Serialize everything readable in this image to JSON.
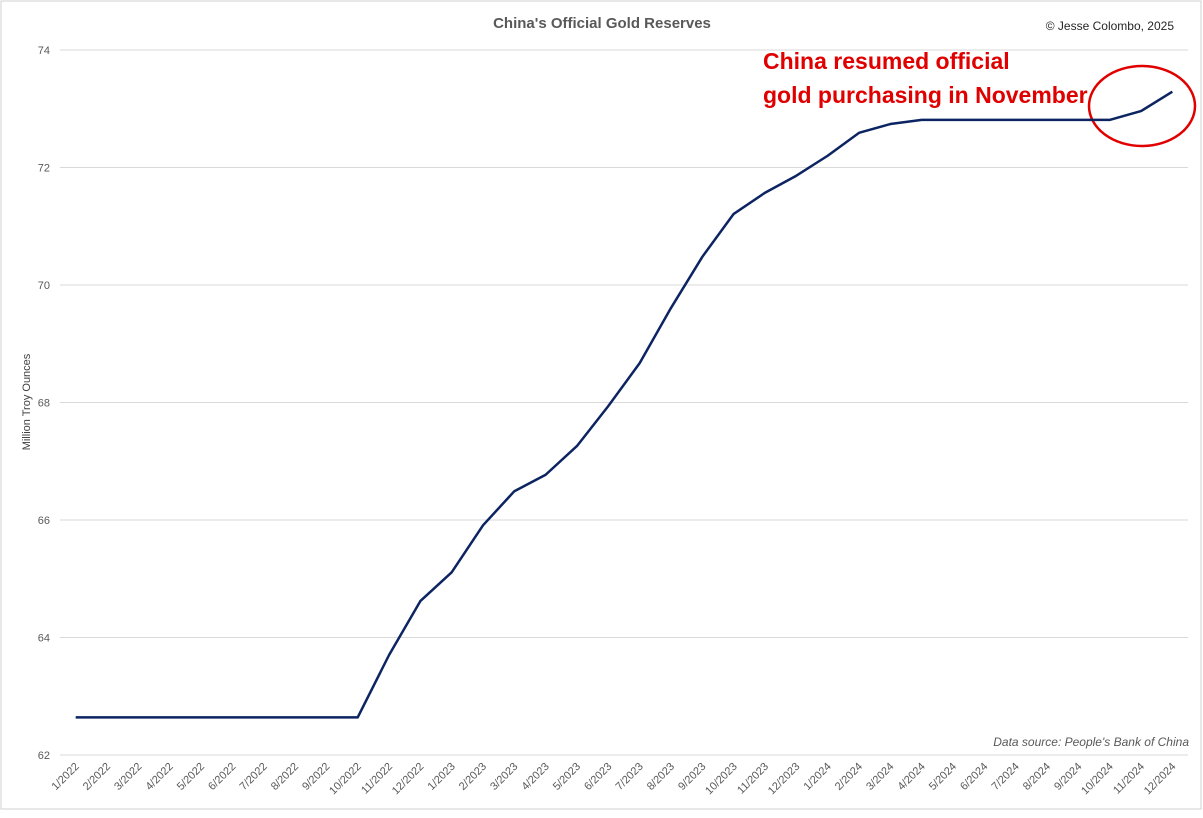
{
  "chart_data": {
    "type": "line",
    "title": "China's Official Gold Reserves",
    "credit": "© Jesse Colombo, 2025",
    "source": "Data source: People's Bank of China",
    "y_label": "Million Troy Ounces",
    "annotation": [
      "China resumed official",
      "gold purchasing in November"
    ],
    "categories": [
      "1/2022",
      "2/2022",
      "3/2022",
      "4/2022",
      "5/2022",
      "6/2022",
      "7/2022",
      "8/2022",
      "9/2022",
      "10/2022",
      "11/2022",
      "12/2022",
      "1/2023",
      "2/2023",
      "3/2023",
      "4/2023",
      "5/2023",
      "6/2023",
      "7/2023",
      "8/2023",
      "9/2023",
      "10/2023",
      "11/2023",
      "12/2023",
      "1/2024",
      "2/2024",
      "3/2024",
      "4/2024",
      "5/2024",
      "6/2024",
      "7/2024",
      "8/2024",
      "9/2024",
      "10/2024",
      "11/2024",
      "12/2024"
    ],
    "series": [
      {
        "name": "Gold reserves",
        "color": "#0c2461",
        "values": [
          62.64,
          62.64,
          62.64,
          62.64,
          62.64,
          62.64,
          62.64,
          62.64,
          62.64,
          62.64,
          63.7,
          64.62,
          65.11,
          65.91,
          66.49,
          66.77,
          67.26,
          67.94,
          68.67,
          69.61,
          70.48,
          71.21,
          71.57,
          71.86,
          72.2,
          72.59,
          72.74,
          72.81,
          72.81,
          72.81,
          72.81,
          72.81,
          72.81,
          72.81,
          72.96,
          73.29
        ]
      }
    ],
    "ylim": [
      62,
      74
    ],
    "yticks": [
      62,
      64,
      66,
      68,
      70,
      72,
      74
    ],
    "grid": true
  }
}
